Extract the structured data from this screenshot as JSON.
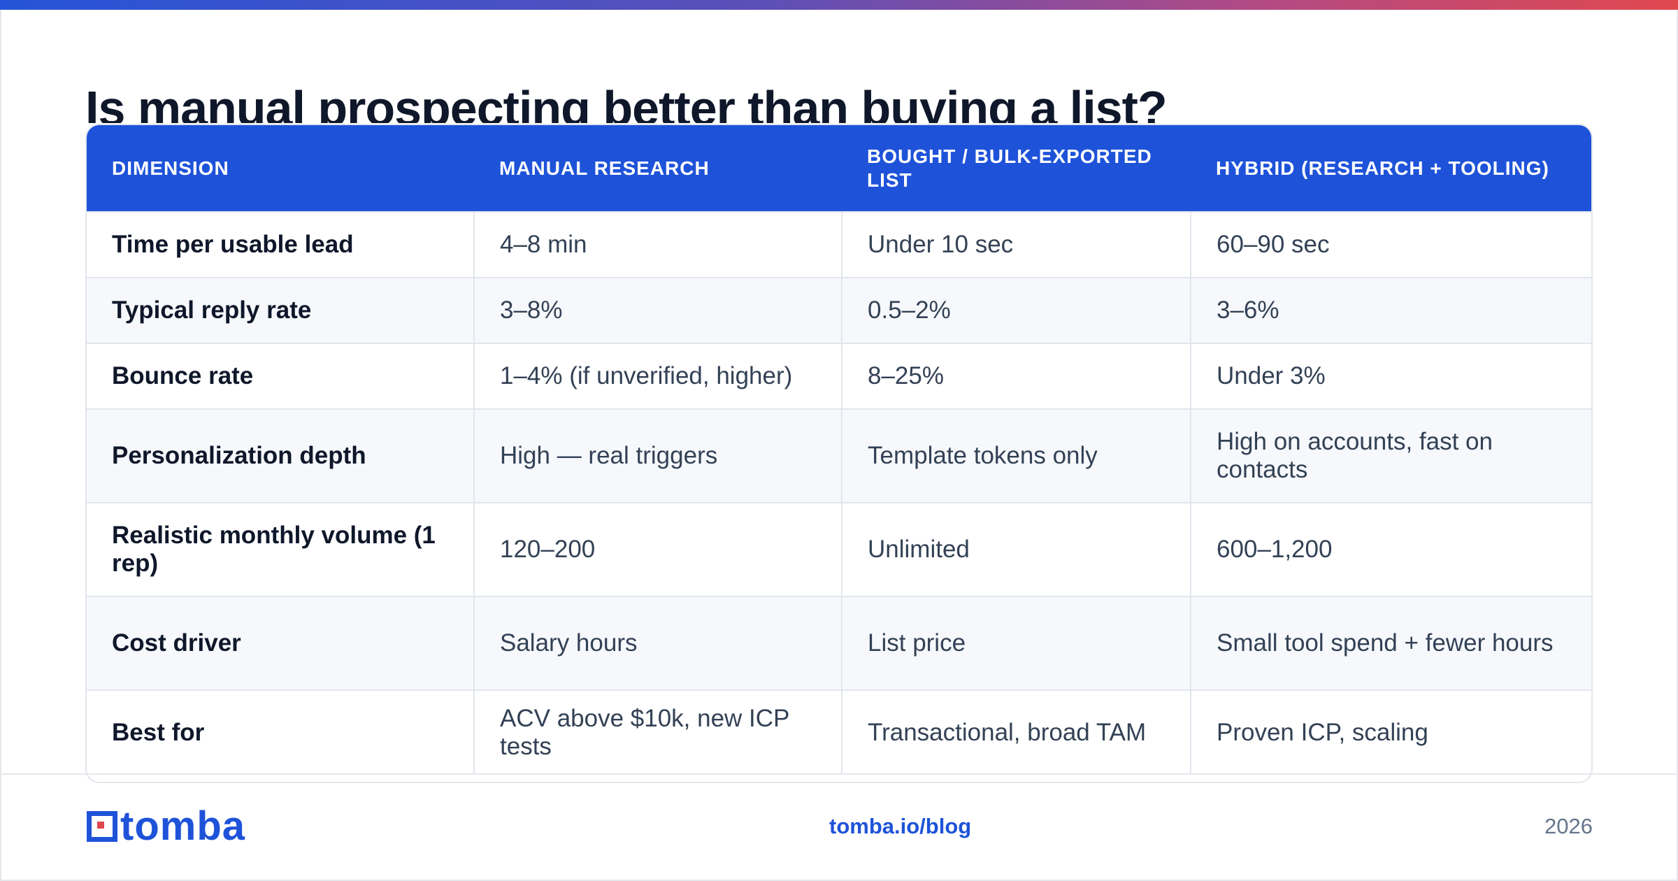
{
  "title": "Is manual prospecting better than buying a list?",
  "table": {
    "headers": [
      "DIMENSION",
      "MANUAL RESEARCH",
      "BOUGHT / BULK-EXPORTED LIST",
      "HYBRID (RESEARCH + TOOLING)"
    ],
    "rows": [
      [
        "Time per usable lead",
        "4–8 min",
        "Under 10 sec",
        "60–90 sec"
      ],
      [
        "Typical reply rate",
        "3–8%",
        "0.5–2%",
        "3–6%"
      ],
      [
        "Bounce rate",
        "1–4% (if unverified, higher)",
        "8–25%",
        "Under 3%"
      ],
      [
        "Personalization depth",
        "High — real triggers",
        "Template tokens only",
        "High on accounts, fast on contacts"
      ],
      [
        "Realistic monthly volume (1 rep)",
        "120–200",
        "Unlimited",
        "600–1,200"
      ],
      [
        "Cost driver",
        "Salary hours",
        "List price",
        "Small tool spend + fewer hours"
      ],
      [
        "Best for",
        "ACV above $10k, new ICP tests",
        "Transactional, broad TAM",
        "Proven ICP, scaling"
      ]
    ]
  },
  "footer": {
    "brand": "tomba",
    "link": "tomba.io/blog",
    "year": "2026"
  },
  "colors": {
    "accent": "#1e53d9",
    "gradient_start": "#2554d8",
    "gradient_end": "#e0484f",
    "row_alt": "#f6f8fb"
  },
  "icons": {
    "logo_mark": "tomba-logo-icon"
  }
}
